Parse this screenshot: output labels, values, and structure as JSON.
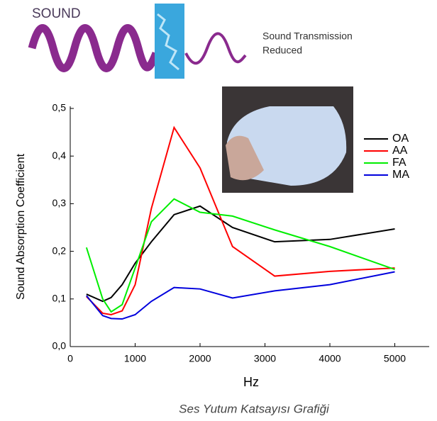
{
  "banner": {
    "title": "SOUND",
    "lines": [
      "Sound Transmission",
      "Reduced"
    ]
  },
  "chart_data": {
    "type": "line",
    "x_label": "Hz",
    "y_label": "Sound Absorption Coefficient",
    "x": [
      250,
      500,
      630,
      800,
      1000,
      1250,
      1600,
      2000,
      2500,
      3150,
      4000,
      5000
    ],
    "series": [
      {
        "name": "OA",
        "color": "#000000",
        "values": [
          0.11,
          0.095,
          0.103,
          0.13,
          0.175,
          0.22,
          0.277,
          0.295,
          0.25,
          0.22,
          0.225,
          0.247
        ]
      },
      {
        "name": "AA",
        "color": "#ff0000",
        "values": [
          0.105,
          0.07,
          0.067,
          0.075,
          0.13,
          0.29,
          0.46,
          0.375,
          0.21,
          0.148,
          0.158,
          0.165
        ]
      },
      {
        "name": "FA",
        "color": "#00ee00",
        "values": [
          0.208,
          0.1,
          0.073,
          0.088,
          0.165,
          0.262,
          0.31,
          0.282,
          0.274,
          0.245,
          0.21,
          0.162
        ]
      },
      {
        "name": "MA",
        "color": "#0000dd",
        "values": [
          0.107,
          0.065,
          0.059,
          0.058,
          0.067,
          0.095,
          0.124,
          0.121,
          0.102,
          0.117,
          0.13,
          0.157
        ]
      }
    ],
    "xlim": [
      0,
      5530
    ],
    "ylim": [
      0,
      0.5
    ],
    "xticks": [
      0,
      1000,
      2000,
      3000,
      4000,
      5000
    ],
    "yticks": [
      {
        "value": 0,
        "label": "0,0"
      },
      {
        "value": 0.1,
        "label": "0,1"
      },
      {
        "value": 0.2,
        "label": "0,2"
      },
      {
        "value": 0.3,
        "label": "0,3"
      },
      {
        "value": 0.4,
        "label": "0,4"
      },
      {
        "value": 0.5,
        "label": "0,5"
      }
    ]
  },
  "caption": "Ses Yutum Katsayısı Grafiği"
}
